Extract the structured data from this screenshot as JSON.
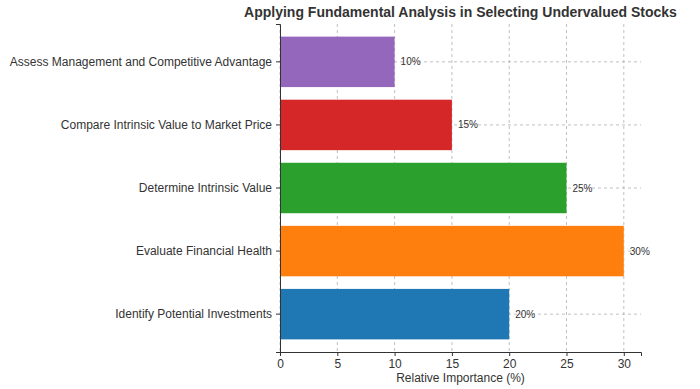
{
  "chart_data": {
    "type": "bar",
    "orientation": "horizontal",
    "title": "Applying Fundamental Analysis in Selecting Undervalued Stocks",
    "x_label": "Relative Importance (%)",
    "categories": [
      "Identify Potential Investments",
      "Evaluate Financial Health",
      "Determine Intrinsic Value",
      "Compare Intrinsic Value to Market Price",
      "Assess Management and Competitive Advantage"
    ],
    "values": [
      20,
      30,
      25,
      15,
      10
    ],
    "value_labels": [
      "20%",
      "30%",
      "25%",
      "15%",
      "10%"
    ],
    "colors": [
      "#1f77b4",
      "#ff7f0e",
      "#2ca02c",
      "#d62728",
      "#9467bd"
    ],
    "xlim": [
      0,
      31.5
    ],
    "xticks": [
      0,
      5,
      10,
      15,
      20,
      25,
      30
    ],
    "grid": true,
    "data_labels": true
  }
}
